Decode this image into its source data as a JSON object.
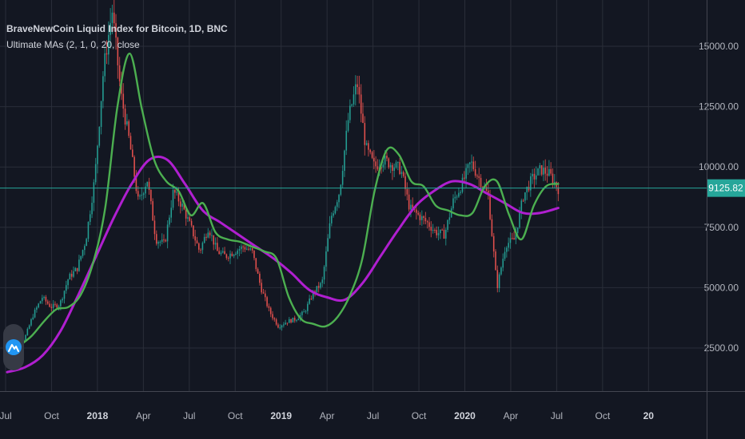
{
  "legend": {
    "title": "BraveNewCoin Liquid Index for Bitcoin, 1D, BNC",
    "indicator": "Ultimate MAs (2, 1, 0, 20, close"
  },
  "colors": {
    "background": "#131722",
    "grid": "#2a2e39",
    "fast_ma": "#4caf50",
    "slow_ma": "#b01fd0",
    "price_line": "#26a69a",
    "candle_up": "#26a69a",
    "candle_down": "#ef5350",
    "axis_text": "#b2b5be"
  },
  "chart_data": {
    "type": "line",
    "x_ticks": [
      "Jul",
      "Oct",
      "2018",
      "Apr",
      "Jul",
      "Oct",
      "2019",
      "Apr",
      "Jul",
      "Oct",
      "2020",
      "Apr",
      "Jul",
      "Oct",
      "20"
    ],
    "y_ticks": [
      "2500.00",
      "5000.00",
      "7500.00",
      "10000.00",
      "12500.00",
      "15000.00"
    ],
    "y_tick_values": [
      2500,
      5000,
      7500,
      10000,
      12500,
      15000
    ],
    "ylim": [
      1000,
      16500
    ],
    "x_range": [
      "2017-07",
      "2021-01"
    ],
    "last_price": 9125.82,
    "last_price_label": "9125.82",
    "x_month_index": [
      0,
      0.5,
      1,
      1.5,
      2,
      2.5,
      3,
      3.5,
      4,
      4.5,
      5,
      5.5,
      6,
      6.5,
      7,
      7.5,
      8,
      8.5,
      9,
      9.5,
      10,
      10.5,
      11,
      11.5,
      12,
      12.5,
      13,
      13.5,
      14,
      14.5,
      15,
      15.5,
      16,
      16.5,
      17,
      17.5,
      18,
      18.5,
      19,
      19.5,
      20,
      20.5,
      21,
      21.5,
      22,
      22.5,
      23,
      23.5,
      24,
      24.5,
      25,
      25.5,
      26,
      26.5,
      27,
      27.5,
      28,
      28.5,
      29,
      29.5,
      30,
      30.5,
      31,
      31.5,
      32,
      32.5,
      33,
      33.5,
      34,
      34.5,
      35,
      35.5,
      36
    ],
    "series": [
      {
        "name": "price",
        "values": [
          2500,
          2700,
          2900,
          3900,
          4600,
          4200,
          4300,
          5400,
          5800,
          7000,
          9500,
          14000,
          16500,
          13000,
          11000,
          8500,
          9500,
          7000,
          6800,
          9000,
          8400,
          7500,
          6500,
          7500,
          6500,
          6300,
          6500,
          6700,
          6500,
          5000,
          4000,
          3400,
          3600,
          3700,
          4000,
          4800,
          5200,
          7900,
          9000,
          12000,
          13500,
          10800,
          10000,
          10300,
          10100,
          9900,
          8300,
          8000,
          7700,
          7300,
          7200,
          8600,
          9300,
          10200,
          9500,
          8800,
          5000,
          6800,
          7000,
          8800,
          9500,
          9900,
          9700,
          9100
        ]
      },
      {
        "name": "fast_ma",
        "values": [
          2300,
          2600,
          3000,
          3600,
          4100,
          4200,
          4700,
          6000,
          8300,
          12500,
          14700,
          12400,
          10300,
          9400,
          9000,
          8000,
          8500,
          7300,
          7000,
          6900,
          6700,
          6500,
          6200,
          4600,
          3700,
          3500,
          3400,
          3800,
          4700,
          6200,
          9000,
          10700,
          10500,
          9400,
          9200,
          8400,
          8200,
          8000,
          8100,
          9200,
          9400,
          8000,
          7000,
          8400,
          9200,
          9300
        ]
      },
      {
        "name": "slow_ma",
        "values": [
          1500,
          1700,
          2200,
          3200,
          4700,
          6300,
          7900,
          9300,
          10300,
          10300,
          9300,
          8200,
          7700,
          7200,
          6700,
          6200,
          5600,
          4900,
          4600,
          4500,
          5200,
          6300,
          7400,
          8400,
          9000,
          9400,
          9300,
          8900,
          8500,
          8100,
          8100,
          8300
        ]
      }
    ]
  }
}
